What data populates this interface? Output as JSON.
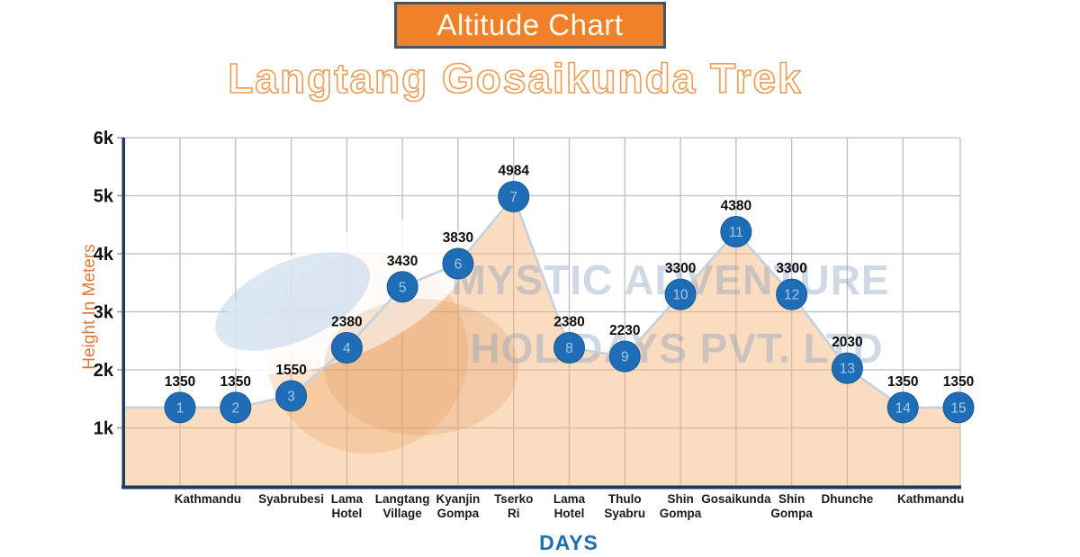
{
  "title": {
    "label": "Altitude Chart"
  },
  "subtitle": {
    "label": "Langtang Gosaikunda Trek"
  },
  "watermark": {
    "line1": "MYSTIC ADVENTURE",
    "line2": "HOLIDAYS PVT. LTD"
  },
  "chart_data": {
    "type": "area",
    "title": "Altitude Chart",
    "subtitle": "Langtang Gosaikunda Trek",
    "xlabel": "DAYS",
    "ylabel": "Height In Meters",
    "ylim": [
      0,
      6000
    ],
    "grid": true,
    "y_ticks": [
      {
        "label": "6k",
        "value": 6000
      },
      {
        "label": "5k",
        "value": 5000
      },
      {
        "label": "4k",
        "value": 4000
      },
      {
        "label": "3k",
        "value": 3000
      },
      {
        "label": "2k",
        "value": 2000
      },
      {
        "label": "1k",
        "value": 1000
      }
    ],
    "points": [
      {
        "day": 1,
        "altitude": 1350
      },
      {
        "day": 2,
        "altitude": 1350
      },
      {
        "day": 3,
        "altitude": 1550
      },
      {
        "day": 4,
        "altitude": 2380
      },
      {
        "day": 5,
        "altitude": 3430
      },
      {
        "day": 6,
        "altitude": 3830
      },
      {
        "day": 7,
        "altitude": 4984
      },
      {
        "day": 8,
        "altitude": 2380
      },
      {
        "day": 9,
        "altitude": 2230
      },
      {
        "day": 10,
        "altitude": 3300
      },
      {
        "day": 11,
        "altitude": 4380
      },
      {
        "day": 12,
        "altitude": 3300
      },
      {
        "day": 13,
        "altitude": 2030
      },
      {
        "day": 14,
        "altitude": 1350
      },
      {
        "day": 15,
        "altitude": 1350
      }
    ],
    "stops": [
      {
        "lines": [
          "Kathmandu"
        ],
        "days": [
          1,
          2
        ]
      },
      {
        "lines": [
          "Syabrubesi"
        ],
        "days": [
          3
        ]
      },
      {
        "lines": [
          "Lama",
          "Hotel"
        ],
        "days": [
          4
        ]
      },
      {
        "lines": [
          "Langtang",
          "Village"
        ],
        "days": [
          5
        ]
      },
      {
        "lines": [
          "Kyanjin",
          "Gompa"
        ],
        "days": [
          6
        ]
      },
      {
        "lines": [
          "Tserko",
          "Ri"
        ],
        "days": [
          7
        ]
      },
      {
        "lines": [
          "Lama",
          "Hotel"
        ],
        "days": [
          8
        ]
      },
      {
        "lines": [
          "Thulo",
          "Syabru"
        ],
        "days": [
          9
        ]
      },
      {
        "lines": [
          "Shin",
          "Gompa"
        ],
        "days": [
          10
        ]
      },
      {
        "lines": [
          "Gosaikunda"
        ],
        "days": [
          11
        ]
      },
      {
        "lines": [
          "Shin",
          "Gompa"
        ],
        "days": [
          12
        ]
      },
      {
        "lines": [
          "Dhunche"
        ],
        "days": [
          13
        ]
      },
      {
        "lines": [
          "Kathmandu"
        ],
        "days": [
          14,
          15
        ]
      }
    ]
  },
  "colors": {
    "title_bg": "#F0812B",
    "title_border": "#44546A",
    "title_text": "#FFF8EC",
    "subtitle_outline": "#F09A52",
    "ylabel_text": "#DE7A36",
    "days_text": "#1B6FB5",
    "axis": "#223A5E",
    "grid": "#BDBDBD",
    "area_fill": "rgba(244,177,115,0.45)",
    "line": "#C7D1DC",
    "marker_fill": "#1E6DB6",
    "marker_stroke": "#17598F",
    "marker_text": "#A5CBEA",
    "value_label": "#0D0D0D",
    "watermark_text": "rgba(128,156,190,0.38)"
  }
}
